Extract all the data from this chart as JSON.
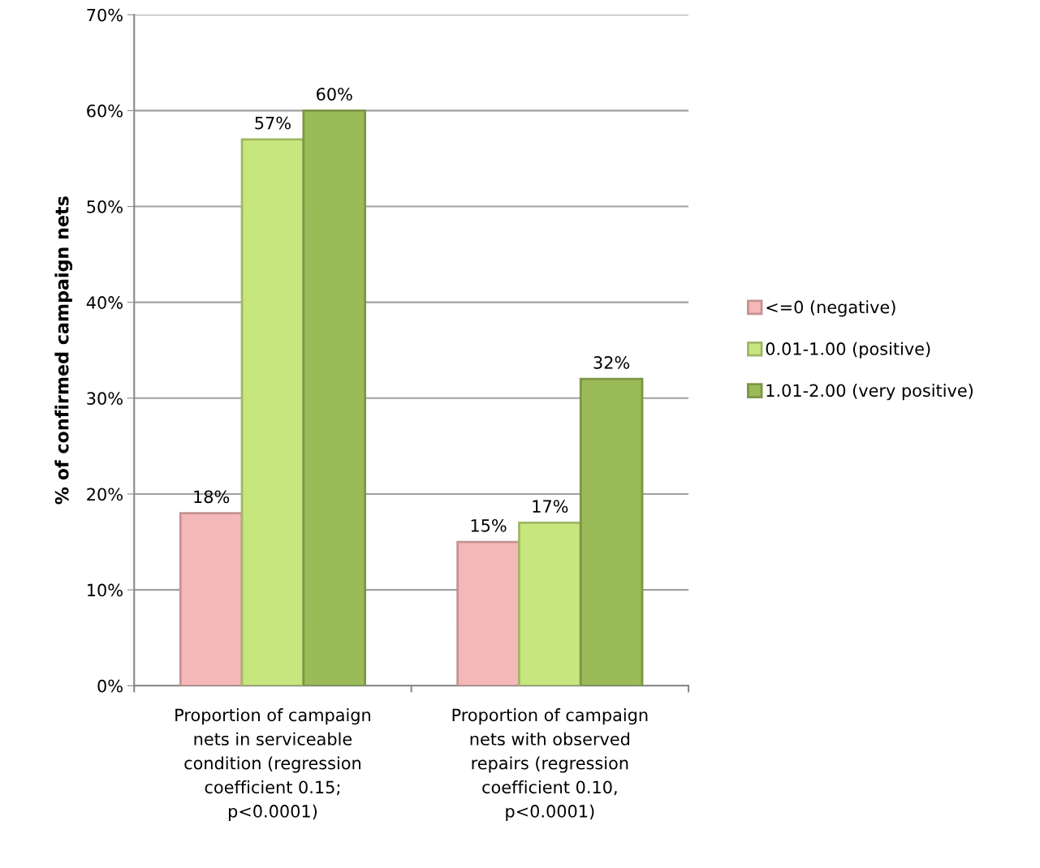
{
  "chart_data": {
    "type": "bar",
    "ylabel": "% of confirmed campaign nets",
    "categories": [
      "Proportion of campaign\nnets in serviceable\ncondition (regression\ncoefficient 0.15;\np<0.0001)",
      "Proportion of campaign\nnets with observed\nrepairs (regression\ncoefficient 0.10,\np<0.0001)"
    ],
    "series": [
      {
        "name": "<=0 (negative)",
        "color": "#f5b8b8",
        "values": [
          18,
          15
        ],
        "value_labels": [
          "18%",
          "15%"
        ]
      },
      {
        "name": "0.01-1.00 (positive)",
        "color": "#c8e67e",
        "values": [
          57,
          17
        ],
        "value_labels": [
          "57%",
          "17%"
        ]
      },
      {
        "name": "1.01-2.00 (very positive)",
        "color": "#9bbb59",
        "values": [
          60,
          32
        ],
        "value_labels": [
          "60%",
          "32%"
        ]
      }
    ],
    "ylim": [
      0,
      70
    ],
    "yticks": [
      {
        "value": 0,
        "label": "0%"
      },
      {
        "value": 10,
        "label": "10%"
      },
      {
        "value": 20,
        "label": "20%"
      },
      {
        "value": 30,
        "label": "30%"
      },
      {
        "value": 40,
        "label": "40%"
      },
      {
        "value": 50,
        "label": "50%"
      },
      {
        "value": 60,
        "label": "60%"
      },
      {
        "value": 70,
        "label": "70%"
      }
    ],
    "grid": "y",
    "legend": "right"
  }
}
